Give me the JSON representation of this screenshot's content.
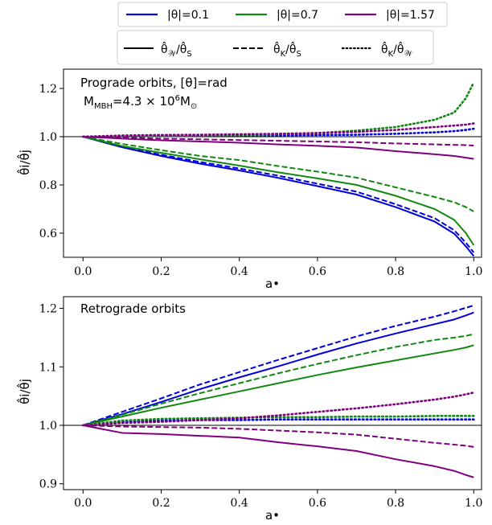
{
  "legend_color": {
    "entries": [
      {
        "label": "|θ|=0.1",
        "color": "#0000dd"
      },
      {
        "label": "|θ|=0.7",
        "color": "#118811"
      },
      {
        "label": "|θ|=1.57",
        "color": "#800080"
      }
    ]
  },
  "legend_style": {
    "entries": [
      {
        "label": "θ̂_𝒲/θ̂_S",
        "base": "θ̂",
        "sub1": "𝒲",
        "sub2": "S",
        "dash": "solid"
      },
      {
        "label": "θ̂_K/θ̂_S",
        "base": "θ̂",
        "sub1": "K",
        "sub2": "S",
        "dash": "dashed"
      },
      {
        "label": "θ̂_K/θ̂_𝒲",
        "base": "θ̂",
        "sub1": "K",
        "sub2": "𝒲",
        "dash": "dotted"
      }
    ]
  },
  "chart_data": [
    {
      "type": "line",
      "annotation": "Prograde orbits, [θ]=rad",
      "annotation2": "M_MBH=4.3 × 10^6 M_⊙",
      "xlabel": "a•",
      "ylabel": "θ̂i/θ̂j",
      "xlim": [
        -0.05,
        1.02
      ],
      "ylim": [
        0.5,
        1.28
      ],
      "xticks": [
        "0.0",
        "0.2",
        "0.4",
        "0.6",
        "0.8",
        "1.0"
      ],
      "yticks": [
        "0.6",
        "0.8",
        "1.0",
        "1.2"
      ],
      "reference_line": 1.0,
      "x": [
        0.0,
        0.1,
        0.2,
        0.3,
        0.4,
        0.5,
        0.6,
        0.7,
        0.8,
        0.9,
        0.95,
        0.98,
        1.0
      ],
      "series": [
        {
          "group": "|θ|=0.1",
          "style": "solid",
          "color": "#0000dd",
          "values": [
            1.0,
            0.956,
            0.92,
            0.888,
            0.86,
            0.829,
            0.795,
            0.76,
            0.708,
            0.648,
            0.598,
            0.545,
            0.505
          ]
        },
        {
          "group": "|θ|=0.1",
          "style": "dashed",
          "color": "#0000dd",
          "values": [
            1.0,
            0.958,
            0.925,
            0.895,
            0.868,
            0.838,
            0.805,
            0.772,
            0.72,
            0.662,
            0.612,
            0.56,
            0.52
          ]
        },
        {
          "group": "|θ|=0.1",
          "style": "dotted",
          "color": "#0000dd",
          "values": [
            1.0,
            1.002,
            1.003,
            1.004,
            1.005,
            1.006,
            1.007,
            1.008,
            1.012,
            1.018,
            1.023,
            1.028,
            1.033
          ]
        },
        {
          "group": "|θ|=0.7",
          "style": "solid",
          "color": "#118811",
          "values": [
            1.0,
            0.961,
            0.933,
            0.906,
            0.88,
            0.852,
            0.827,
            0.8,
            0.755,
            0.7,
            0.655,
            0.6,
            0.55
          ]
        },
        {
          "group": "|θ|=0.7",
          "style": "dashed",
          "color": "#118811",
          "values": [
            1.0,
            0.97,
            0.944,
            0.92,
            0.903,
            0.878,
            0.855,
            0.83,
            0.79,
            0.75,
            0.728,
            0.708,
            0.69
          ]
        },
        {
          "group": "|θ|=0.7",
          "style": "dotted",
          "color": "#118811",
          "values": [
            1.0,
            1.002,
            1.003,
            1.005,
            1.007,
            1.01,
            1.015,
            1.025,
            1.04,
            1.07,
            1.1,
            1.16,
            1.225
          ]
        },
        {
          "group": "|θ|=1.57",
          "style": "solid",
          "color": "#800080",
          "values": [
            1.0,
            0.992,
            0.985,
            0.98,
            0.975,
            0.968,
            0.962,
            0.955,
            0.94,
            0.927,
            0.92,
            0.913,
            0.908
          ]
        },
        {
          "group": "|θ|=1.57",
          "style": "dashed",
          "color": "#800080",
          "values": [
            1.0,
            0.997,
            0.992,
            0.989,
            0.986,
            0.983,
            0.98,
            0.977,
            0.972,
            0.968,
            0.966,
            0.965,
            0.963
          ]
        },
        {
          "group": "|θ|=1.57",
          "style": "dotted",
          "color": "#800080",
          "values": [
            1.0,
            1.005,
            1.007,
            1.008,
            1.01,
            1.012,
            1.015,
            1.02,
            1.028,
            1.04,
            1.046,
            1.05,
            1.055
          ]
        }
      ]
    },
    {
      "type": "line",
      "annotation": "Retrograde orbits",
      "xlabel": "a•",
      "ylabel": "θ̂i/θ̂j",
      "xlim": [
        -0.05,
        1.02
      ],
      "ylim": [
        0.89,
        1.22
      ],
      "xticks": [
        "0.0",
        "0.2",
        "0.4",
        "0.6",
        "0.8",
        "1.0"
      ],
      "yticks": [
        "0.9",
        "1.0",
        "1.1",
        "1.2"
      ],
      "reference_line": 1.0,
      "x": [
        0.0,
        0.1,
        0.2,
        0.3,
        0.4,
        0.5,
        0.6,
        0.7,
        0.8,
        0.9,
        0.95,
        0.98,
        1.0
      ],
      "series": [
        {
          "group": "|θ|=0.1",
          "style": "solid",
          "color": "#0000dd",
          "values": [
            1.0,
            1.019,
            1.04,
            1.062,
            1.082,
            1.101,
            1.121,
            1.14,
            1.157,
            1.173,
            1.181,
            1.188,
            1.193
          ]
        },
        {
          "group": "|θ|=0.1",
          "style": "dashed",
          "color": "#0000dd",
          "values": [
            1.0,
            1.023,
            1.046,
            1.07,
            1.091,
            1.112,
            1.132,
            1.152,
            1.17,
            1.186,
            1.195,
            1.201,
            1.205
          ]
        },
        {
          "group": "|θ|=0.1",
          "style": "dotted",
          "color": "#0000dd",
          "values": [
            1.0,
            1.006,
            1.008,
            1.009,
            1.009,
            1.01,
            1.01,
            1.01,
            1.01,
            1.01,
            1.01,
            1.01,
            1.01
          ]
        },
        {
          "group": "|θ|=0.7",
          "style": "solid",
          "color": "#118811",
          "values": [
            1.0,
            1.015,
            1.03,
            1.044,
            1.058,
            1.072,
            1.086,
            1.099,
            1.111,
            1.123,
            1.129,
            1.133,
            1.137
          ]
        },
        {
          "group": "|θ|=0.7",
          "style": "dashed",
          "color": "#118811",
          "values": [
            1.0,
            1.018,
            1.037,
            1.055,
            1.072,
            1.089,
            1.105,
            1.12,
            1.134,
            1.146,
            1.15,
            1.153,
            1.156
          ]
        },
        {
          "group": "|θ|=0.7",
          "style": "dotted",
          "color": "#118811",
          "values": [
            1.0,
            1.008,
            1.011,
            1.012,
            1.013,
            1.014,
            1.014,
            1.015,
            1.015,
            1.016,
            1.016,
            1.016,
            1.016
          ]
        },
        {
          "group": "|θ|=1.57",
          "style": "solid",
          "color": "#800080",
          "values": [
            1.0,
            0.987,
            0.985,
            0.982,
            0.979,
            0.971,
            0.964,
            0.956,
            0.942,
            0.93,
            0.922,
            0.915,
            0.911
          ]
        },
        {
          "group": "|θ|=1.57",
          "style": "dashed",
          "color": "#800080",
          "values": [
            1.0,
            0.998,
            0.997,
            0.996,
            0.994,
            0.991,
            0.988,
            0.984,
            0.977,
            0.97,
            0.967,
            0.965,
            0.963
          ]
        },
        {
          "group": "|θ|=1.57",
          "style": "dotted",
          "color": "#800080",
          "values": [
            1.0,
            1.004,
            1.006,
            1.009,
            1.012,
            1.017,
            1.023,
            1.029,
            1.036,
            1.044,
            1.049,
            1.053,
            1.056
          ]
        }
      ]
    }
  ]
}
